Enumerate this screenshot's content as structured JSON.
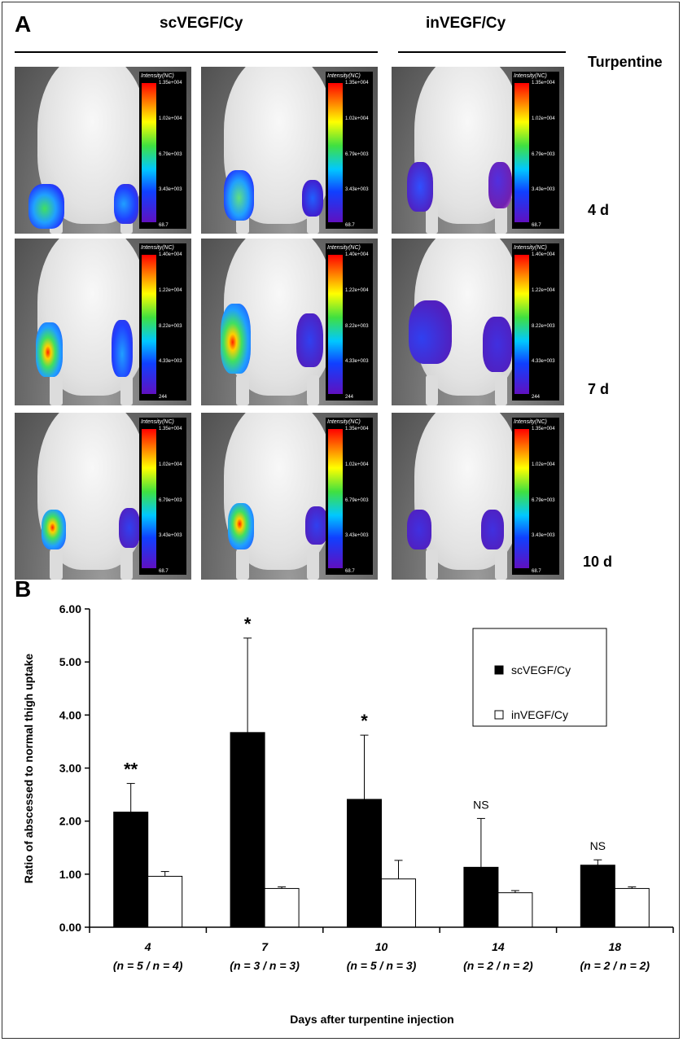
{
  "panel_a": {
    "letter": "A",
    "group_titles": [
      "scVEGF/Cy",
      "inVEGF/Cy"
    ],
    "right_header": "Turpentine",
    "row_labels": [
      "4 d",
      "7 d",
      "10 d"
    ],
    "colorbar_title": "Intensity(NC)",
    "colorbar_ticks": [
      [
        "1.35e+004",
        "1.02e+004",
        "6.79e+003",
        "3.43e+003",
        "68.7"
      ],
      [
        "1.40e+004",
        "1.22e+004",
        "8.22e+003",
        "4.33e+003",
        "244"
      ],
      [
        "1.35e+004",
        "1.02e+004",
        "6.79e+003",
        "3.43e+003",
        "68.7"
      ]
    ],
    "colors": {
      "body": "#e6e6e6",
      "background": "#7d7d7d",
      "colorbar": "#000000"
    }
  },
  "chart_data": {
    "type": "bar",
    "letter": "B",
    "categories": [
      "4",
      "7",
      "10",
      "14",
      "18"
    ],
    "category_sublabels": [
      "(n = 5 / n = 4)",
      "(n = 3 / n = 3)",
      "(n = 5 / n = 3)",
      "(n = 2 / n = 2)",
      "(n = 2 / n = 2)"
    ],
    "series": [
      {
        "name": "scVEGF/Cy",
        "color": "#000000",
        "values": [
          2.17,
          3.67,
          2.41,
          1.13,
          1.17
        ],
        "errors": [
          0.54,
          1.78,
          1.21,
          0.92,
          0.1
        ]
      },
      {
        "name": "inVEGF/Cy",
        "color": "#ffffff",
        "values": [
          0.96,
          0.73,
          0.91,
          0.65,
          0.73
        ],
        "errors": [
          0.09,
          0.03,
          0.35,
          0.04,
          0.03
        ]
      }
    ],
    "annotations": [
      "**",
      "*",
      "*",
      "NS",
      "NS"
    ],
    "xlabel": "Days after turpentine injection",
    "ylabel": "Ratio of abscessed to normal thigh uptake",
    "ylim": [
      0,
      6
    ],
    "yticks": [
      "0.00",
      "1.00",
      "2.00",
      "3.00",
      "4.00",
      "5.00",
      "6.00"
    ],
    "legend_position": "top-right",
    "grid": false
  }
}
